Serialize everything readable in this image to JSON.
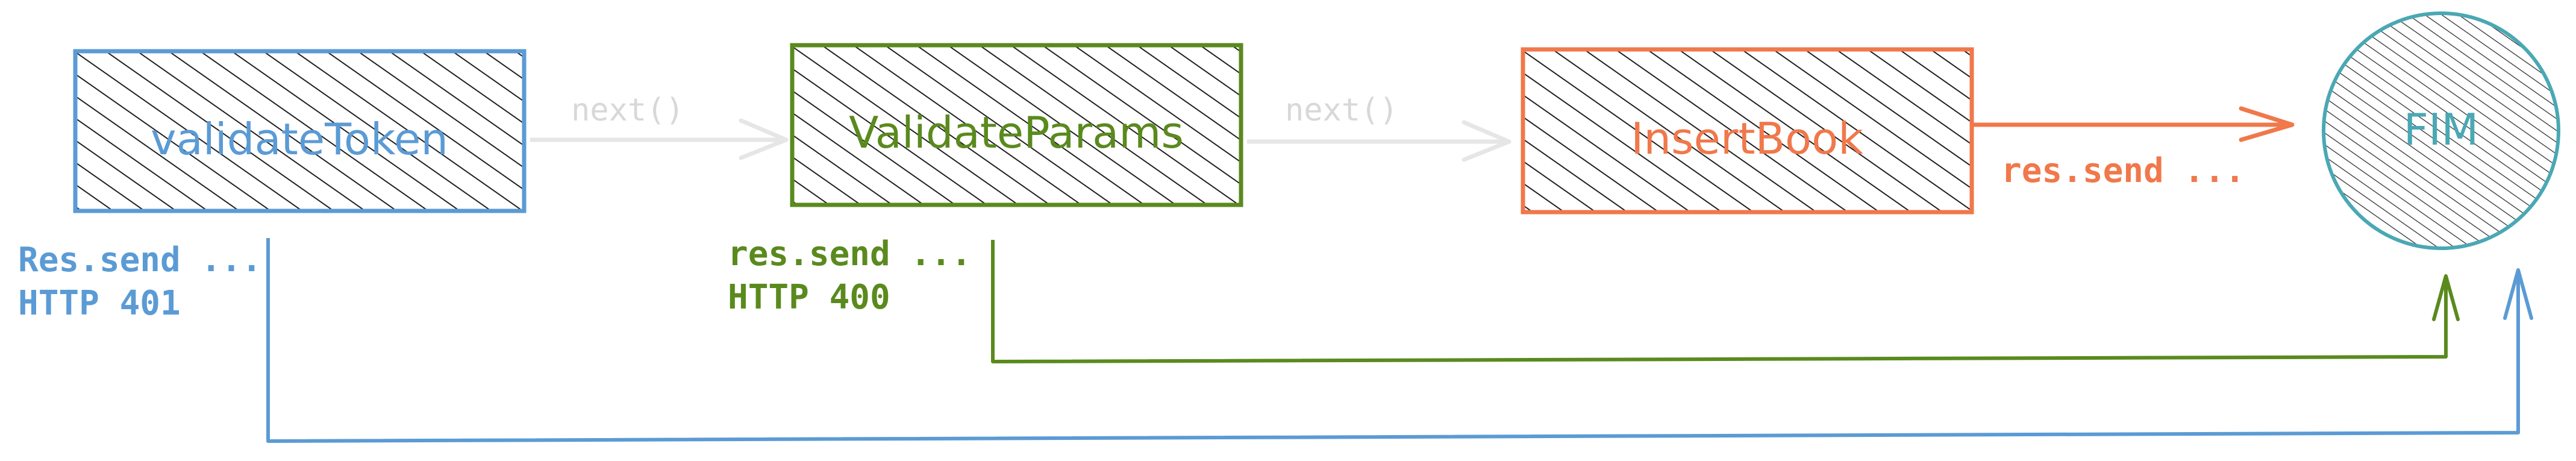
{
  "colors": {
    "blue": "#5b9bd5",
    "green": "#5a8a1e",
    "orange": "#f0784a",
    "teal": "#4aa8b4",
    "gray": "#e6e6e6",
    "gray_text": "#d8d8d8",
    "hatch": "#1f1f1f"
  },
  "nodes": {
    "validate_token": "validateToken",
    "validate_params": "ValidateParams",
    "insert_book": "InsertBook",
    "fim": "FIM"
  },
  "edges": {
    "next_1": "next()",
    "next_2": "next()",
    "insert_send": "res.send ..."
  },
  "notes": {
    "token_send": "Res.send ...",
    "token_status": "HTTP 401",
    "params_send": "res.send ...",
    "params_status": "HTTP 400"
  }
}
